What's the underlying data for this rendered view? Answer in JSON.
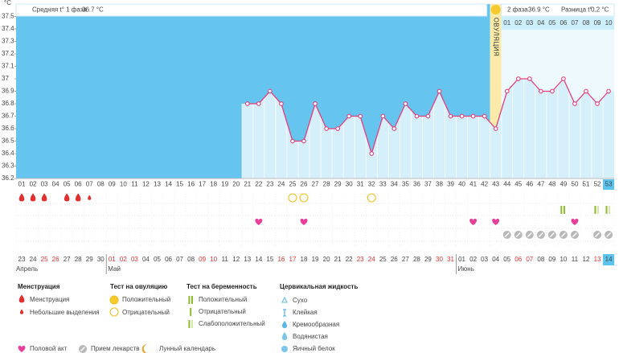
{
  "chart_data": {
    "type": "line",
    "y_unit": "°C",
    "phase1_label": "Средняя t° 1 фаза",
    "phase1_avg": "36.7 °C",
    "phase2_label": "2 фаза",
    "phase2_avg": "36.9 °C",
    "diff_label": "Разница t°",
    "diff": "0.2 °C",
    "ovulation_label": "ОВУЛЯЦИЯ",
    "ovulation_day": 43,
    "current_day": 53,
    "categories": [
      "01",
      "02",
      "03",
      "04",
      "05",
      "06",
      "07",
      "08",
      "09",
      "10",
      "11",
      "12",
      "13",
      "14",
      "15",
      "16",
      "17",
      "18",
      "19",
      "20",
      "21",
      "22",
      "23",
      "24",
      "25",
      "26",
      "27",
      "28",
      "29",
      "30",
      "31",
      "32",
      "33",
      "34",
      "35",
      "36",
      "37",
      "38",
      "39",
      "40",
      "41",
      "42",
      "43",
      "44",
      "45",
      "46",
      "47",
      "48",
      "49",
      "50",
      "51",
      "52",
      "53"
    ],
    "phase2_days": [
      "01",
      "02",
      "03",
      "04",
      "05",
      "06",
      "07",
      "08",
      "09",
      "10"
    ],
    "x": [
      21,
      22,
      23,
      24,
      25,
      26,
      27,
      28,
      29,
      30,
      31,
      32,
      33,
      34,
      35,
      36,
      37,
      38,
      39,
      40,
      41,
      42,
      43,
      44,
      45,
      46,
      47,
      48,
      49,
      50,
      51,
      52,
      53
    ],
    "values": [
      36.8,
      36.8,
      36.9,
      36.8,
      36.5,
      36.5,
      36.8,
      36.6,
      36.6,
      36.7,
      36.7,
      36.4,
      36.7,
      36.6,
      36.8,
      36.7,
      36.7,
      36.9,
      36.7,
      36.7,
      36.7,
      36.7,
      36.6,
      36.9,
      37.0,
      37.0,
      36.9,
      36.9,
      37.0,
      36.8,
      36.9,
      36.8,
      36.9
    ],
    "color": "#e2407c",
    "ylim": [
      36.2,
      37.6
    ],
    "yticks": [
      36.2,
      36.3,
      36.4,
      36.5,
      36.6,
      36.7,
      36.8,
      36.9,
      37,
      37.1,
      37.2,
      37.3,
      37.4,
      37.5
    ],
    "symbols": {
      "menstruation": [
        1,
        2,
        3,
        5,
        6
      ],
      "light_bleeding": [
        7
      ],
      "ovulation_negative": [
        25,
        26,
        32
      ],
      "pregnancy_positive": [
        49
      ],
      "pregnancy_weak": [
        52,
        53
      ],
      "intercourse": [
        22,
        26,
        41,
        43,
        50
      ],
      "medicine": [
        44,
        45,
        46,
        47,
        48,
        49,
        50,
        52,
        53
      ]
    },
    "dates": [
      "23",
      "24",
      "25",
      "26",
      "27",
      "28",
      "29",
      "30",
      "01",
      "02",
      "03",
      "04",
      "05",
      "06",
      "07",
      "08",
      "09",
      "10",
      "11",
      "12",
      "13",
      "14",
      "15",
      "16",
      "17",
      "18",
      "19",
      "20",
      "21",
      "22",
      "23",
      "24",
      "25",
      "26",
      "27",
      "28",
      "29",
      "30",
      "31",
      "01",
      "02",
      "03",
      "04",
      "05",
      "06",
      "07",
      "08",
      "09",
      "10",
      "11",
      "12",
      "13",
      "14"
    ],
    "weekend": [
      false,
      false,
      true,
      true,
      false,
      false,
      false,
      false,
      true,
      true,
      true,
      false,
      false,
      false,
      false,
      false,
      true,
      true,
      false,
      false,
      false,
      false,
      false,
      true,
      true,
      false,
      false,
      false,
      false,
      false,
      true,
      true,
      false,
      false,
      false,
      false,
      false,
      true,
      true,
      false,
      false,
      false,
      false,
      false,
      true,
      true,
      false,
      false,
      false,
      false,
      false,
      true,
      false
    ],
    "months": [
      {
        "label": "Апрель",
        "start": 1
      },
      {
        "label": "Май",
        "start": 9
      },
      {
        "label": "Июнь",
        "start": 40
      }
    ]
  },
  "legend": {
    "menstruation": {
      "title": "Менструация",
      "items": [
        "Менструация",
        "Небольшие выделения"
      ]
    },
    "ovulation_test": {
      "title": "Тест на овуляцию",
      "items": [
        "Положительный",
        "Отрицательный"
      ]
    },
    "pregnancy_test": {
      "title": "Тест на беременность",
      "items": [
        "Положительный",
        "Отрицательный",
        "Слабоположительный"
      ]
    },
    "cervical": {
      "title": "Цервикальная жидкость",
      "items": [
        "Сухо",
        "Клейкая",
        "Кремообразная",
        "Водянистая",
        "Яичный белок"
      ]
    },
    "other": [
      "Половой акт",
      "Прием лекарств",
      "Лунный календарь"
    ]
  }
}
